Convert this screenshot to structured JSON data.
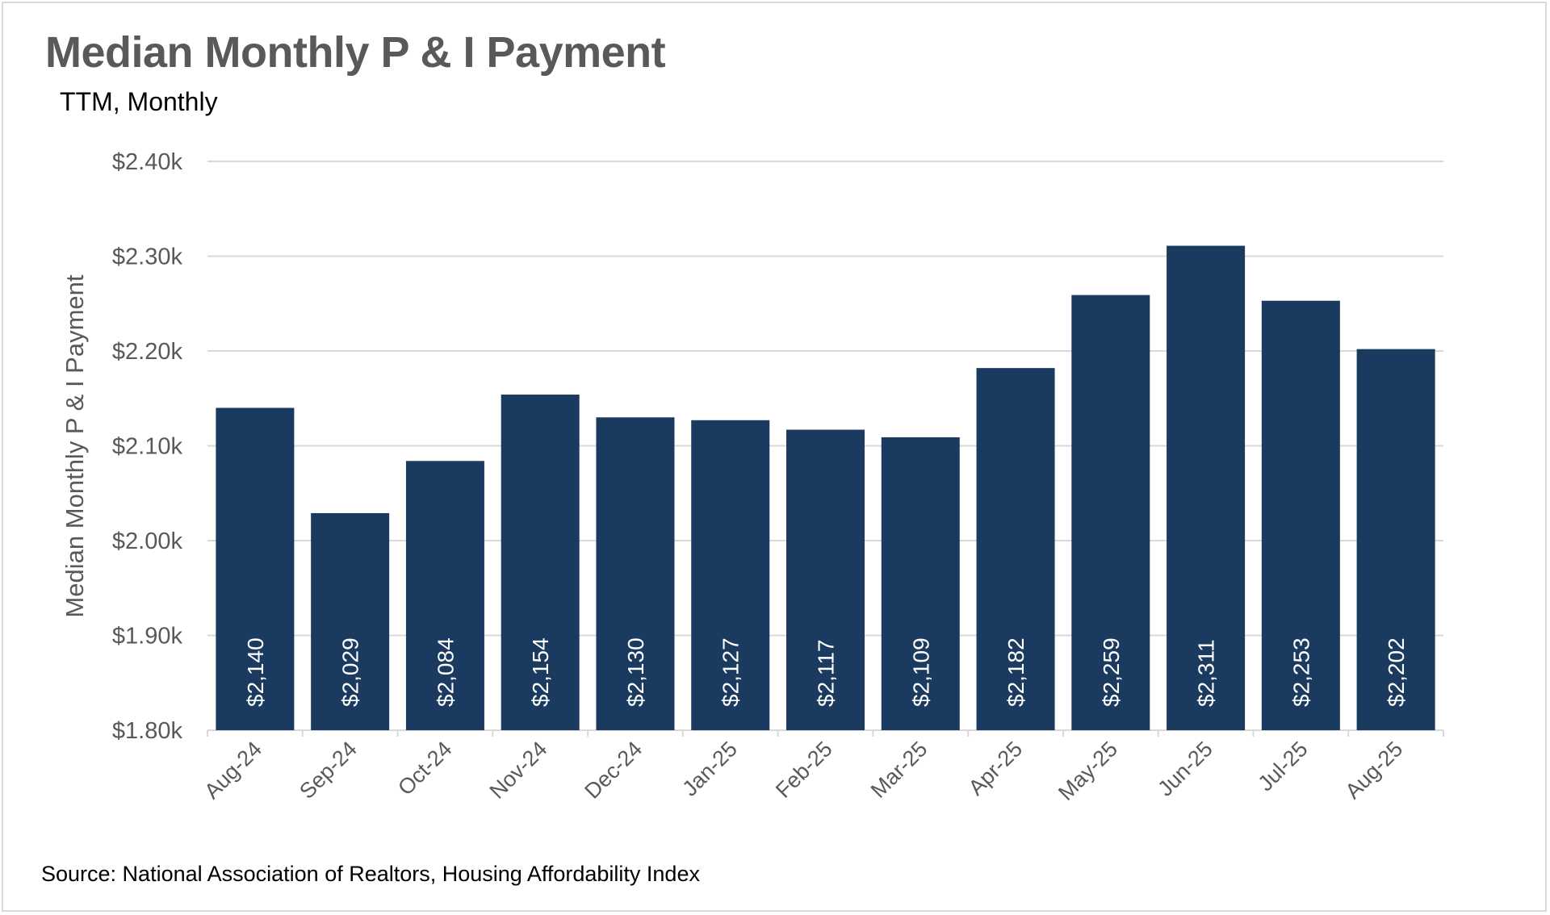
{
  "chart_data": {
    "type": "bar",
    "title": "Median Monthly P & I Payment",
    "subtitle": "TTM, Monthly",
    "ylabel": "Median Monthly P & I Payment",
    "xlabel": "",
    "ylim": [
      1800,
      2400
    ],
    "yticks": [
      1800,
      1900,
      2000,
      2100,
      2200,
      2300,
      2400
    ],
    "ytick_labels": [
      "$1.80k",
      "$1.90k",
      "$2.00k",
      "$2.10k",
      "$2.20k",
      "$2.30k",
      "$2.40k"
    ],
    "categories": [
      "Aug-24",
      "Sep-24",
      "Oct-24",
      "Nov-24",
      "Dec-24",
      "Jan-25",
      "Feb-25",
      "Mar-25",
      "Apr-25",
      "May-25",
      "Jun-25",
      "Jul-25",
      "Aug-25"
    ],
    "values": [
      2140,
      2029,
      2084,
      2154,
      2130,
      2127,
      2117,
      2109,
      2182,
      2259,
      2311,
      2253,
      2202
    ],
    "data_labels": [
      "$2,140",
      "$2,029",
      "$2,084",
      "$2,154",
      "$2,130",
      "$2,127",
      "$2,117",
      "$2,109",
      "$2,182",
      "$2,259",
      "$2,311",
      "$2,253",
      "$2,202"
    ],
    "grid": true,
    "legend": "none",
    "colors": {
      "bar": "#1b3a5f",
      "grid": "#d9d9d9",
      "axis_text": "#595959"
    },
    "source": "Source: National Association of Realtors, Housing Affordability Index"
  }
}
